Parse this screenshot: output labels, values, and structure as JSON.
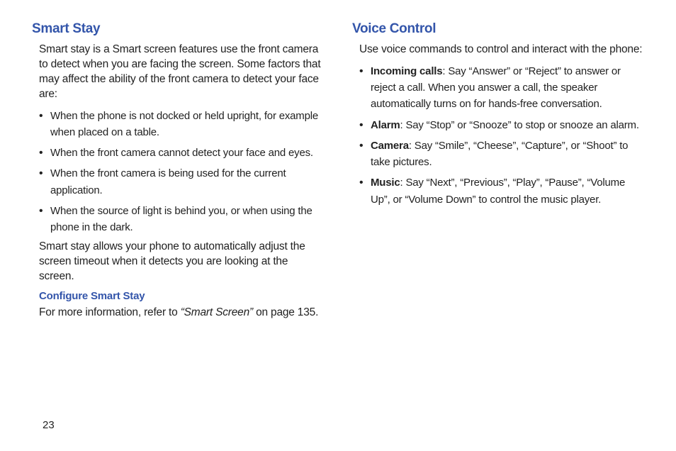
{
  "colors": {
    "heading": "#3355aa",
    "text": "#222222",
    "background": "#ffffff"
  },
  "typography": {
    "heading_size_pt": 19,
    "body_size_pt": 15.5,
    "bullet_size_pt": 15,
    "subheading_size_pt": 15,
    "font_family": "Arial"
  },
  "left": {
    "heading": "Smart Stay",
    "intro": "Smart stay is a Smart screen features use the front camera to detect when you are facing the screen. Some factors that may affect the ability of the front camera to detect your face are:",
    "bullets": [
      {
        "term": "",
        "text": "When the phone is not docked or held upright, for example when placed on a table."
      },
      {
        "term": "",
        "text": "When the front camera cannot detect your face and eyes."
      },
      {
        "term": "",
        "text": "When the front camera is being used for the current application."
      },
      {
        "term": "",
        "text": "When the source of light is behind you, or when using the phone in the dark."
      }
    ],
    "followup": "Smart stay allows your phone to automatically adjust the screen timeout when it detects you are looking at the screen.",
    "subheading": "Configure Smart Stay",
    "ref_prefix": "For more information, refer to ",
    "ref_title": "“Smart Screen”",
    "ref_suffix": "  on page 135."
  },
  "right": {
    "heading": "Voice Control",
    "intro": "Use voice commands to control and interact with the phone:",
    "bullets": [
      {
        "term": "Incoming calls",
        "text": ": Say “Answer” or “Reject” to answer or reject a call. When you answer a call, the speaker automatically turns on for hands-free conversation."
      },
      {
        "term": "Alarm",
        "text": ": Say “Stop” or “Snooze” to stop or snooze an alarm."
      },
      {
        "term": "Camera",
        "text": ": Say “Smile”, “Cheese”, “Capture”, or “Shoot” to take pictures."
      },
      {
        "term": "Music",
        "text": ": Say “Next”, “Previous”, “Play”, “Pause”, “Volume Up”, or “Volume Down” to control the music player."
      }
    ]
  },
  "page_number": "23"
}
